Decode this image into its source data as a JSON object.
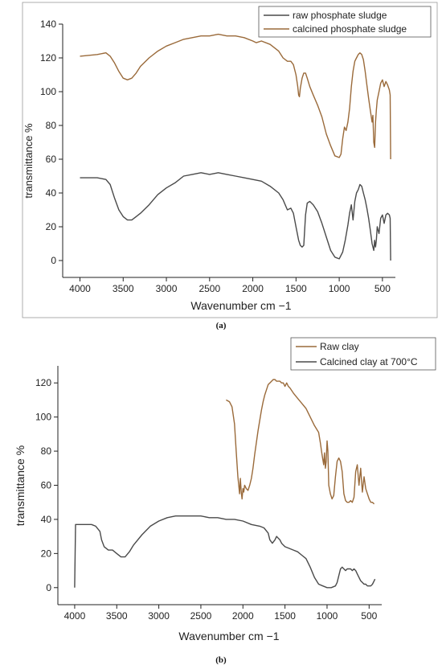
{
  "colors": {
    "dark": "#4a4a4a",
    "brown": "#9a6a3a",
    "axis": "#222222"
  },
  "chart_data": [
    {
      "type": "line",
      "panel": "(a)",
      "xlabel": "Wavenumber cm −1",
      "ylabel": "transmittance %",
      "xlim": [
        4200,
        350
      ],
      "ylim": [
        -10,
        140
      ],
      "x_ticks": [
        4000,
        3500,
        3000,
        2500,
        2000,
        1500,
        1000,
        500
      ],
      "y_ticks": [
        0,
        20,
        40,
        60,
        80,
        100,
        120,
        140
      ],
      "legend_position": "top-right",
      "series": [
        {
          "name": "raw phosphate sludge",
          "color": "#4a4a4a",
          "x": [
            4000,
            3800,
            3700,
            3650,
            3600,
            3550,
            3500,
            3450,
            3400,
            3350,
            3300,
            3200,
            3100,
            3000,
            2900,
            2800,
            2700,
            2600,
            2500,
            2400,
            2300,
            2200,
            2100,
            2000,
            1900,
            1800,
            1700,
            1650,
            1600,
            1560,
            1530,
            1500,
            1470,
            1450,
            1430,
            1410,
            1390,
            1370,
            1340,
            1300,
            1250,
            1200,
            1150,
            1100,
            1050,
            1000,
            960,
            930,
            900,
            880,
            860,
            840,
            820,
            800,
            780,
            760,
            740,
            720,
            700,
            680,
            660,
            640,
            620,
            600,
            590,
            580,
            570,
            560,
            540,
            520,
            500,
            480,
            460,
            440,
            420,
            410,
            405
          ],
          "y": [
            49,
            49,
            48,
            45,
            37,
            30,
            26,
            24,
            24,
            26,
            28,
            33,
            39,
            43,
            46,
            50,
            51,
            52,
            51,
            52,
            51,
            50,
            49,
            48,
            47,
            44,
            40,
            36,
            30,
            31,
            28,
            20,
            12,
            9,
            8,
            9,
            27,
            34,
            35,
            33,
            29,
            22,
            14,
            6,
            2,
            1,
            5,
            12,
            21,
            28,
            33,
            24,
            35,
            40,
            42,
            45,
            44,
            40,
            36,
            31,
            25,
            18,
            10,
            6,
            12,
            8,
            12,
            20,
            16,
            25,
            27,
            22,
            27,
            28,
            27,
            25,
            0
          ]
        },
        {
          "name": "calcined phosphate sludge",
          "color": "#9a6a3a",
          "x": [
            4000,
            3800,
            3700,
            3650,
            3600,
            3550,
            3500,
            3450,
            3400,
            3350,
            3300,
            3200,
            3100,
            3000,
            2900,
            2800,
            2700,
            2600,
            2500,
            2400,
            2300,
            2200,
            2100,
            2000,
            1960,
            1900,
            1800,
            1700,
            1650,
            1600,
            1560,
            1530,
            1500,
            1480,
            1470,
            1460,
            1450,
            1430,
            1410,
            1390,
            1370,
            1340,
            1300,
            1250,
            1200,
            1150,
            1100,
            1050,
            1000,
            980,
            960,
            940,
            920,
            900,
            880,
            860,
            840,
            820,
            800,
            780,
            760,
            740,
            720,
            700,
            680,
            660,
            640,
            620,
            610,
            600,
            590,
            580,
            570,
            560,
            540,
            520,
            500,
            480,
            460,
            440,
            420,
            410,
            405
          ],
          "y": [
            121,
            122,
            123,
            121,
            117,
            112,
            108,
            107,
            108,
            111,
            115,
            120,
            124,
            127,
            129,
            131,
            132,
            133,
            133,
            134,
            133,
            133,
            132,
            130,
            129,
            130,
            128,
            124,
            120,
            118,
            118,
            116,
            110,
            103,
            98,
            97,
            102,
            108,
            111,
            111,
            108,
            103,
            98,
            92,
            85,
            75,
            68,
            62,
            61,
            63,
            72,
            79,
            77,
            82,
            90,
            103,
            112,
            118,
            120,
            122,
            123,
            122,
            119,
            112,
            104,
            96,
            89,
            82,
            86,
            70,
            67,
            82,
            89,
            95,
            100,
            105,
            107,
            103,
            106,
            104,
            101,
            98,
            60
          ]
        }
      ]
    },
    {
      "type": "line",
      "panel": "(b)",
      "xlabel": "Wavenumber cm −1",
      "ylabel": "transmittance %",
      "xlim": [
        4200,
        350
      ],
      "ylim": [
        -10,
        130
      ],
      "x_ticks": [
        4000,
        3500,
        3000,
        2500,
        2000,
        1500,
        1000,
        500
      ],
      "y_ticks": [
        0,
        20,
        40,
        60,
        80,
        100,
        120
      ],
      "legend_position": "top-right",
      "series": [
        {
          "name": "Raw clay",
          "color": "#9a6a3a",
          "x": [
            2200,
            2160,
            2130,
            2100,
            2080,
            2060,
            2050,
            2040,
            2030,
            2020,
            2010,
            2000,
            1990,
            1980,
            1960,
            1940,
            1920,
            1900,
            1880,
            1860,
            1840,
            1820,
            1800,
            1780,
            1760,
            1740,
            1720,
            1700,
            1680,
            1660,
            1640,
            1620,
            1600,
            1580,
            1560,
            1540,
            1520,
            1500,
            1480,
            1460,
            1440,
            1400,
            1350,
            1300,
            1250,
            1200,
            1150,
            1100,
            1080,
            1060,
            1040,
            1030,
            1020,
            1010,
            1000,
            990,
            980,
            960,
            940,
            920,
            900,
            880,
            860,
            840,
            820,
            800,
            780,
            760,
            740,
            720,
            700,
            680,
            660,
            640,
            620,
            600,
            580,
            560,
            540,
            520,
            500,
            480,
            460,
            440
          ],
          "y": [
            110,
            109,
            106,
            96,
            80,
            65,
            60,
            55,
            64,
            56,
            52,
            58,
            56,
            60,
            58,
            57,
            60,
            64,
            70,
            78,
            85,
            92,
            98,
            104,
            109,
            113,
            116,
            119,
            120,
            121,
            122,
            122,
            121,
            121,
            121,
            120,
            120,
            118,
            120,
            118,
            117,
            114,
            111,
            108,
            105,
            100,
            95,
            91,
            85,
            78,
            72,
            79,
            70,
            74,
            86,
            80,
            60,
            55,
            52,
            54,
            65,
            74,
            76,
            74,
            68,
            55,
            51,
            50,
            50,
            51,
            50,
            53,
            68,
            72,
            60,
            70,
            56,
            65,
            58,
            55,
            52,
            50,
            50,
            49
          ]
        },
        {
          "name": "Calcined clay at 700°C",
          "color": "#4a4a4a",
          "x": [
            4000,
            3990,
            3900,
            3800,
            3750,
            3700,
            3680,
            3650,
            3600,
            3550,
            3500,
            3450,
            3400,
            3350,
            3300,
            3200,
            3100,
            3000,
            2900,
            2800,
            2700,
            2600,
            2500,
            2400,
            2300,
            2200,
            2100,
            2000,
            1900,
            1800,
            1750,
            1700,
            1680,
            1650,
            1620,
            1600,
            1580,
            1560,
            1540,
            1520,
            1500,
            1450,
            1400,
            1350,
            1300,
            1250,
            1200,
            1150,
            1100,
            1050,
            1000,
            950,
            900,
            880,
            860,
            840,
            820,
            800,
            780,
            760,
            740,
            720,
            700,
            680,
            660,
            640,
            620,
            600,
            580,
            560,
            540,
            520,
            500,
            480,
            460,
            440,
            430
          ],
          "y": [
            0,
            37,
            37,
            37,
            36,
            33,
            28,
            24,
            22,
            22,
            20,
            18,
            18,
            21,
            25,
            31,
            36,
            39,
            41,
            42,
            42,
            42,
            42,
            41,
            41,
            40,
            40,
            39,
            37,
            36,
            35,
            32,
            28,
            26,
            28,
            30,
            29,
            28,
            26,
            25,
            24,
            23,
            22,
            21,
            19,
            17,
            12,
            6,
            2,
            1,
            0,
            0,
            1,
            3,
            7,
            11,
            12,
            11,
            10,
            11,
            11,
            11,
            10,
            11,
            10,
            8,
            6,
            4,
            3,
            2,
            2,
            1,
            1,
            1,
            2,
            4,
            5
          ]
        }
      ]
    }
  ]
}
